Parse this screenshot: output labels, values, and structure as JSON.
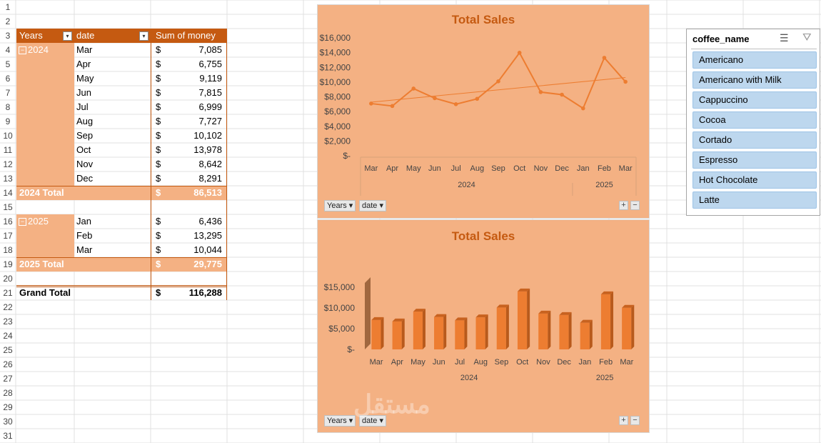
{
  "row_numbers": [
    "1",
    "2",
    "3",
    "4",
    "5",
    "6",
    "7",
    "8",
    "9",
    "10",
    "11",
    "12",
    "13",
    "14",
    "15",
    "16",
    "17",
    "18",
    "19",
    "20",
    "21",
    "22",
    "23",
    "24",
    "25",
    "26",
    "27",
    "28",
    "29",
    "30",
    "31"
  ],
  "pivot": {
    "headers": {
      "years": "Years",
      "date": "date",
      "sum": "Sum of money"
    },
    "groups": [
      {
        "year": "2024",
        "rows": [
          {
            "month": "Mar",
            "cur": "$",
            "value": "7,085"
          },
          {
            "month": "Apr",
            "cur": "$",
            "value": "6,755"
          },
          {
            "month": "May",
            "cur": "$",
            "value": "9,119"
          },
          {
            "month": "Jun",
            "cur": "$",
            "value": "7,815"
          },
          {
            "month": "Jul",
            "cur": "$",
            "value": "6,999"
          },
          {
            "month": "Aug",
            "cur": "$",
            "value": "7,727"
          },
          {
            "month": "Sep",
            "cur": "$",
            "value": "10,102"
          },
          {
            "month": "Oct",
            "cur": "$",
            "value": "13,978"
          },
          {
            "month": "Nov",
            "cur": "$",
            "value": "8,642"
          },
          {
            "month": "Dec",
            "cur": "$",
            "value": "8,291"
          }
        ],
        "total_label": "2024 Total",
        "total_cur": "$",
        "total_value": "86,513"
      },
      {
        "year": "2025",
        "rows": [
          {
            "month": "Jan",
            "cur": "$",
            "value": "6,436"
          },
          {
            "month": "Feb",
            "cur": "$",
            "value": "13,295"
          },
          {
            "month": "Mar",
            "cur": "$",
            "value": "10,044"
          }
        ],
        "total_label": "2025 Total",
        "total_cur": "$",
        "total_value": "29,775"
      }
    ],
    "grand_total": {
      "label": "Grand Total",
      "cur": "$",
      "value": "116,288"
    }
  },
  "chart_data": [
    {
      "type": "line",
      "title": "Total Sales",
      "categories": [
        "Mar",
        "Apr",
        "May",
        "Jun",
        "Jul",
        "Aug",
        "Sep",
        "Oct",
        "Nov",
        "Dec",
        "Jan",
        "Feb",
        "Mar"
      ],
      "groups": [
        {
          "label": "2024",
          "count": 10
        },
        {
          "label": "2025",
          "count": 3
        }
      ],
      "values": [
        7085,
        6755,
        9119,
        7815,
        6999,
        7727,
        10102,
        13978,
        8642,
        8291,
        6436,
        13295,
        10044
      ],
      "y_ticks": [
        "$-",
        "$2,000",
        "$4,000",
        "$6,000",
        "$8,000",
        "$10,000",
        "$12,000",
        "$14,000",
        "$16,000"
      ],
      "ylim": [
        0,
        16000
      ],
      "trendline": true,
      "field_buttons": [
        "Years",
        "date"
      ]
    },
    {
      "type": "bar",
      "title": "Total Sales",
      "categories": [
        "Mar",
        "Apr",
        "May",
        "Jun",
        "Jul",
        "Aug",
        "Sep",
        "Oct",
        "Nov",
        "Dec",
        "Jan",
        "Feb",
        "Mar"
      ],
      "groups": [
        {
          "label": "2024",
          "count": 10
        },
        {
          "label": "2025",
          "count": 3
        }
      ],
      "values": [
        7085,
        6755,
        9119,
        7815,
        6999,
        7727,
        10102,
        13978,
        8642,
        8291,
        6436,
        13295,
        10044
      ],
      "y_ticks": [
        "$-",
        "$5,000",
        "$10,000",
        "$15,000"
      ],
      "ylim": [
        0,
        15000
      ],
      "field_buttons": [
        "Years",
        "date"
      ]
    }
  ],
  "slicer": {
    "title": "coffee_name",
    "items": [
      "Americano",
      "Americano with Milk",
      "Cappuccino",
      "Cocoa",
      "Cortado",
      "Espresso",
      "Hot Chocolate",
      "Latte"
    ]
  },
  "colors": {
    "header": "#c55a11",
    "total": "#f4b183",
    "chart_bg": "#f4b183",
    "line": "#ed7d31",
    "bar": "#ed7d31",
    "slicer_item": "#bdd7ee"
  }
}
